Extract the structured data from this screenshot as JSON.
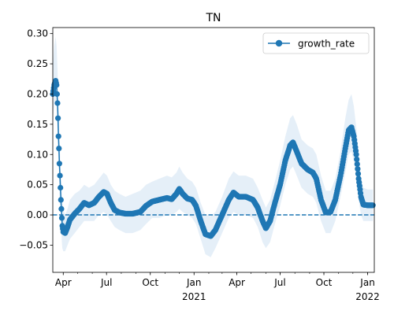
{
  "chart_data": {
    "type": "line",
    "title": "TN",
    "xlabel": "",
    "ylabel": "",
    "x_range": [
      "2020-03-10",
      "2022-01-15"
    ],
    "ylim": [
      -0.095,
      0.31
    ],
    "y_ticks": [
      {
        "value": -0.05,
        "label": "−0.05"
      },
      {
        "value": 0.0,
        "label": "0.00"
      },
      {
        "value": 0.05,
        "label": "0.05"
      },
      {
        "value": 0.1,
        "label": "0.10"
      },
      {
        "value": 0.15,
        "label": "0.15"
      },
      {
        "value": 0.2,
        "label": "0.20"
      },
      {
        "value": 0.25,
        "label": "0.25"
      },
      {
        "value": 0.3,
        "label": "0.30"
      }
    ],
    "x_ticks": [
      {
        "date": "2020-04-01",
        "label": "Apr",
        "sublabel": ""
      },
      {
        "date": "2020-07-01",
        "label": "Jul",
        "sublabel": ""
      },
      {
        "date": "2020-10-01",
        "label": "Oct",
        "sublabel": ""
      },
      {
        "date": "2021-01-01",
        "label": "Jan",
        "sublabel": "2021"
      },
      {
        "date": "2021-04-01",
        "label": "Apr",
        "sublabel": ""
      },
      {
        "date": "2021-07-01",
        "label": "Jul",
        "sublabel": ""
      },
      {
        "date": "2021-10-01",
        "label": "Oct",
        "sublabel": ""
      },
      {
        "date": "2022-01-01",
        "label": "Jan",
        "sublabel": "2022"
      }
    ],
    "minor_ticks_monthly": true,
    "grid": false,
    "legend_position": "top-right",
    "reference_line": {
      "y": 0.0,
      "style": "dashed"
    },
    "series": [
      {
        "name": "growth_rate",
        "color": "#1f77b4",
        "band_color": "#c6dbef",
        "marker": "circle",
        "points": [
          {
            "x": "2020-03-10",
            "y": 0.2,
            "lo": 0.16,
            "hi": 0.25
          },
          {
            "x": "2020-03-13",
            "y": 0.215,
            "lo": 0.18,
            "hi": 0.28
          },
          {
            "x": "2020-03-16",
            "y": 0.222,
            "lo": 0.19,
            "hi": 0.295
          },
          {
            "x": "2020-03-18",
            "y": 0.215,
            "lo": 0.18,
            "hi": 0.28
          },
          {
            "x": "2020-03-20",
            "y": 0.185,
            "lo": 0.14,
            "hi": 0.24
          },
          {
            "x": "2020-03-21",
            "y": 0.16,
            "lo": 0.11,
            "hi": 0.21
          },
          {
            "x": "2020-03-22",
            "y": 0.13,
            "lo": 0.08,
            "hi": 0.18
          },
          {
            "x": "2020-03-23",
            "y": 0.11,
            "lo": 0.06,
            "hi": 0.16
          },
          {
            "x": "2020-03-24",
            "y": 0.085,
            "lo": 0.04,
            "hi": 0.13
          },
          {
            "x": "2020-03-25",
            "y": 0.065,
            "lo": 0.02,
            "hi": 0.11
          },
          {
            "x": "2020-03-26",
            "y": 0.045,
            "lo": 0.005,
            "hi": 0.085
          },
          {
            "x": "2020-03-27",
            "y": 0.025,
            "lo": -0.015,
            "hi": 0.065
          },
          {
            "x": "2020-03-28",
            "y": 0.01,
            "lo": -0.03,
            "hi": 0.05
          },
          {
            "x": "2020-03-29",
            "y": -0.005,
            "lo": -0.045,
            "hi": 0.035
          },
          {
            "x": "2020-03-30",
            "y": -0.018,
            "lo": -0.055,
            "hi": 0.025
          },
          {
            "x": "2020-04-01",
            "y": -0.028,
            "lo": -0.06,
            "hi": 0.008
          },
          {
            "x": "2020-04-05",
            "y": -0.03,
            "lo": -0.06,
            "hi": 0.0
          },
          {
            "x": "2020-04-10",
            "y": -0.02,
            "lo": -0.05,
            "hi": 0.01
          },
          {
            "x": "2020-04-15",
            "y": -0.008,
            "lo": -0.04,
            "hi": 0.025
          },
          {
            "x": "2020-04-25",
            "y": 0.002,
            "lo": -0.03,
            "hi": 0.035
          },
          {
            "x": "2020-05-05",
            "y": 0.01,
            "lo": -0.02,
            "hi": 0.04
          },
          {
            "x": "2020-05-15",
            "y": 0.02,
            "lo": -0.01,
            "hi": 0.05
          },
          {
            "x": "2020-05-25",
            "y": 0.016,
            "lo": -0.01,
            "hi": 0.045
          },
          {
            "x": "2020-06-05",
            "y": 0.02,
            "lo": -0.01,
            "hi": 0.05
          },
          {
            "x": "2020-06-15",
            "y": 0.03,
            "lo": 0.0,
            "hi": 0.06
          },
          {
            "x": "2020-06-25",
            "y": 0.038,
            "lo": 0.005,
            "hi": 0.07
          },
          {
            "x": "2020-07-02",
            "y": 0.035,
            "lo": 0.0,
            "hi": 0.065
          },
          {
            "x": "2020-07-10",
            "y": 0.02,
            "lo": -0.01,
            "hi": 0.05
          },
          {
            "x": "2020-07-18",
            "y": 0.008,
            "lo": -0.02,
            "hi": 0.04
          },
          {
            "x": "2020-07-28",
            "y": 0.004,
            "lo": -0.025,
            "hi": 0.035
          },
          {
            "x": "2020-08-10",
            "y": 0.002,
            "lo": -0.03,
            "hi": 0.03
          },
          {
            "x": "2020-08-25",
            "y": 0.002,
            "lo": -0.03,
            "hi": 0.035
          },
          {
            "x": "2020-09-10",
            "y": 0.005,
            "lo": -0.025,
            "hi": 0.04
          },
          {
            "x": "2020-09-22",
            "y": 0.015,
            "lo": -0.015,
            "hi": 0.05
          },
          {
            "x": "2020-10-05",
            "y": 0.022,
            "lo": -0.005,
            "hi": 0.055
          },
          {
            "x": "2020-10-20",
            "y": 0.025,
            "lo": -0.005,
            "hi": 0.06
          },
          {
            "x": "2020-11-05",
            "y": 0.028,
            "lo": 0.0,
            "hi": 0.065
          },
          {
            "x": "2020-11-15",
            "y": 0.026,
            "lo": 0.0,
            "hi": 0.062
          },
          {
            "x": "2020-11-25",
            "y": 0.035,
            "lo": 0.005,
            "hi": 0.07
          },
          {
            "x": "2020-12-01",
            "y": 0.043,
            "lo": 0.01,
            "hi": 0.08
          },
          {
            "x": "2020-12-08",
            "y": 0.035,
            "lo": 0.005,
            "hi": 0.07
          },
          {
            "x": "2020-12-18",
            "y": 0.027,
            "lo": 0.0,
            "hi": 0.06
          },
          {
            "x": "2020-12-28",
            "y": 0.025,
            "lo": -0.005,
            "hi": 0.055
          },
          {
            "x": "2021-01-05",
            "y": 0.015,
            "lo": -0.015,
            "hi": 0.045
          },
          {
            "x": "2021-01-15",
            "y": -0.01,
            "lo": -0.04,
            "hi": 0.02
          },
          {
            "x": "2021-01-25",
            "y": -0.032,
            "lo": -0.065,
            "hi": 0.0
          },
          {
            "x": "2021-02-05",
            "y": -0.035,
            "lo": -0.07,
            "hi": -0.002
          },
          {
            "x": "2021-02-15",
            "y": -0.025,
            "lo": -0.055,
            "hi": 0.005
          },
          {
            "x": "2021-03-01",
            "y": 0.0,
            "lo": -0.03,
            "hi": 0.03
          },
          {
            "x": "2021-03-15",
            "y": 0.025,
            "lo": -0.005,
            "hi": 0.06
          },
          {
            "x": "2021-03-25",
            "y": 0.037,
            "lo": 0.005,
            "hi": 0.072
          },
          {
            "x": "2021-04-05",
            "y": 0.03,
            "lo": 0.0,
            "hi": 0.065
          },
          {
            "x": "2021-04-20",
            "y": 0.03,
            "lo": 0.0,
            "hi": 0.065
          },
          {
            "x": "2021-05-05",
            "y": 0.025,
            "lo": -0.005,
            "hi": 0.06
          },
          {
            "x": "2021-05-15",
            "y": 0.012,
            "lo": -0.02,
            "hi": 0.045
          },
          {
            "x": "2021-05-25",
            "y": -0.01,
            "lo": -0.045,
            "hi": 0.025
          },
          {
            "x": "2021-06-01",
            "y": -0.022,
            "lo": -0.055,
            "hi": 0.012
          },
          {
            "x": "2021-06-10",
            "y": -0.01,
            "lo": -0.045,
            "hi": 0.025
          },
          {
            "x": "2021-06-20",
            "y": 0.02,
            "lo": -0.015,
            "hi": 0.055
          },
          {
            "x": "2021-07-01",
            "y": 0.05,
            "lo": 0.015,
            "hi": 0.09
          },
          {
            "x": "2021-07-12",
            "y": 0.09,
            "lo": 0.05,
            "hi": 0.13
          },
          {
            "x": "2021-07-22",
            "y": 0.115,
            "lo": 0.075,
            "hi": 0.16
          },
          {
            "x": "2021-07-28",
            "y": 0.12,
            "lo": 0.08,
            "hi": 0.165
          },
          {
            "x": "2021-08-05",
            "y": 0.105,
            "lo": 0.065,
            "hi": 0.15
          },
          {
            "x": "2021-08-15",
            "y": 0.085,
            "lo": 0.045,
            "hi": 0.125
          },
          {
            "x": "2021-08-28",
            "y": 0.075,
            "lo": 0.035,
            "hi": 0.115
          },
          {
            "x": "2021-09-08",
            "y": 0.07,
            "lo": 0.03,
            "hi": 0.11
          },
          {
            "x": "2021-09-15",
            "y": 0.06,
            "lo": 0.02,
            "hi": 0.1
          },
          {
            "x": "2021-09-25",
            "y": 0.025,
            "lo": -0.01,
            "hi": 0.065
          },
          {
            "x": "2021-10-05",
            "y": 0.004,
            "lo": -0.03,
            "hi": 0.04
          },
          {
            "x": "2021-10-15",
            "y": 0.005,
            "lo": -0.03,
            "hi": 0.04
          },
          {
            "x": "2021-10-25",
            "y": 0.025,
            "lo": -0.01,
            "hi": 0.06
          },
          {
            "x": "2021-11-05",
            "y": 0.065,
            "lo": 0.03,
            "hi": 0.105
          },
          {
            "x": "2021-11-15",
            "y": 0.11,
            "lo": 0.07,
            "hi": 0.16
          },
          {
            "x": "2021-11-22",
            "y": 0.14,
            "lo": 0.1,
            "hi": 0.19
          },
          {
            "x": "2021-11-28",
            "y": 0.145,
            "lo": 0.105,
            "hi": 0.2
          },
          {
            "x": "2021-12-03",
            "y": 0.13,
            "lo": 0.09,
            "hi": 0.18
          },
          {
            "x": "2021-12-08",
            "y": 0.1,
            "lo": 0.06,
            "hi": 0.145
          },
          {
            "x": "2021-12-13",
            "y": 0.06,
            "lo": 0.025,
            "hi": 0.1
          },
          {
            "x": "2021-12-18",
            "y": 0.03,
            "lo": 0.0,
            "hi": 0.06
          },
          {
            "x": "2021-12-23",
            "y": 0.017,
            "lo": -0.01,
            "hi": 0.045
          },
          {
            "x": "2022-01-01",
            "y": 0.016,
            "lo": -0.01,
            "hi": 0.042
          },
          {
            "x": "2022-01-12",
            "y": 0.016,
            "lo": -0.01,
            "hi": 0.042
          }
        ]
      }
    ]
  }
}
